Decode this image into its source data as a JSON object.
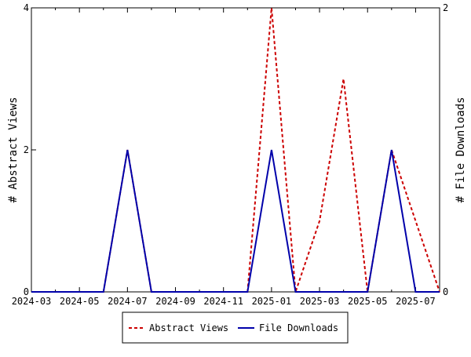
{
  "chart_data": {
    "type": "line",
    "x": [
      "2024-03",
      "2024-04",
      "2024-05",
      "2024-06",
      "2024-07",
      "2024-08",
      "2024-09",
      "2024-10",
      "2024-11",
      "2024-12",
      "2025-01",
      "2025-02",
      "2025-03",
      "2025-04",
      "2025-05",
      "2025-06",
      "2025-07",
      "2025-08"
    ],
    "xticks": [
      "2024-03",
      "2024-05",
      "2024-07",
      "2024-09",
      "2024-11",
      "2025-01",
      "2025-03",
      "2025-05",
      "2025-07"
    ],
    "series": [
      {
        "name": "Abstract Views",
        "axis": "left",
        "color": "#cc0000",
        "dash": true,
        "values": [
          0,
          0,
          0,
          0,
          2,
          0,
          0,
          0,
          0,
          0,
          4,
          0,
          1,
          3,
          0,
          2,
          1,
          0
        ]
      },
      {
        "name": "File Downloads",
        "axis": "right",
        "color": "#0000aa",
        "dash": false,
        "values": [
          0,
          0,
          0,
          0,
          1,
          0,
          0,
          0,
          0,
          0,
          1,
          0,
          0,
          0,
          0,
          1,
          0,
          0
        ]
      }
    ],
    "ylabel_left": "# Abstract Views",
    "ylabel_right": "# File Downloads",
    "ylim_left": [
      0,
      4
    ],
    "ylim_right": [
      0,
      2
    ],
    "yticks_left": [
      0,
      2,
      4
    ],
    "yticks_right": [
      0,
      2
    ],
    "grid": false,
    "legend": "bottom"
  }
}
